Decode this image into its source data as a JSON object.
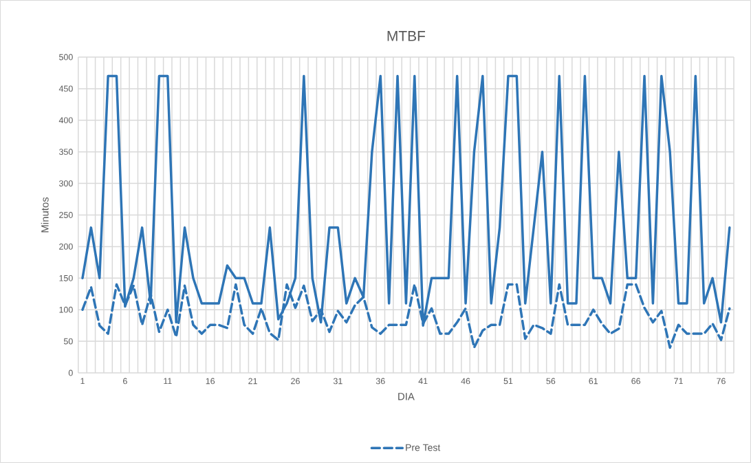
{
  "chart_data": {
    "type": "line",
    "title": "MTBF",
    "xlabel": "DIA",
    "ylabel": "Minutos",
    "x": [
      1,
      2,
      3,
      4,
      5,
      6,
      7,
      8,
      9,
      10,
      11,
      12,
      13,
      14,
      15,
      16,
      17,
      18,
      19,
      20,
      21,
      22,
      23,
      24,
      25,
      26,
      27,
      28,
      29,
      30,
      31,
      32,
      33,
      34,
      35,
      36,
      37,
      38,
      39,
      40,
      41,
      42,
      43,
      44,
      45,
      46,
      47,
      48,
      49,
      50,
      51,
      52,
      53,
      54,
      55,
      56,
      57,
      58,
      59,
      60,
      61,
      62,
      63,
      64,
      65,
      66,
      67,
      68,
      69,
      70,
      71,
      72,
      73,
      74,
      75,
      76,
      77
    ],
    "xlim": [
      0.5,
      77.5
    ],
    "xticks": [
      1,
      6,
      11,
      16,
      21,
      26,
      31,
      36,
      41,
      46,
      51,
      56,
      61,
      66,
      71,
      76
    ],
    "ylim": [
      0,
      500
    ],
    "yticks": [
      0,
      50,
      100,
      150,
      200,
      250,
      300,
      350,
      400,
      450,
      500
    ],
    "grid": true,
    "legend": "bottom",
    "series": [
      {
        "color": "#2e75b6",
        "line_style": "solid",
        "values": [
          150,
          230,
          150,
          470,
          470,
          105,
          150,
          230,
          110,
          470,
          470,
          80,
          230,
          150,
          110,
          110,
          110,
          170,
          150,
          150,
          110,
          110,
          230,
          85,
          110,
          150,
          470,
          150,
          80,
          230,
          230,
          110,
          150,
          120,
          350,
          470,
          110,
          470,
          110,
          470,
          75,
          150,
          150,
          150,
          470,
          110,
          350,
          470,
          110,
          230,
          470,
          470,
          110,
          230,
          350,
          110,
          470,
          110,
          110,
          470,
          150,
          150,
          110,
          350,
          150,
          150,
          470,
          110,
          470,
          350,
          110,
          110,
          470,
          110,
          150,
          80,
          230
        ]
      },
      {
        "name": "Pre Test",
        "color": "#2e75b6",
        "line_style": "dashed",
        "values": [
          100,
          136,
          75,
          62,
          140,
          107,
          138,
          76,
          125,
          65,
          100,
          57,
          138,
          76,
          62,
          76,
          76,
          71,
          140,
          76,
          62,
          102,
          63,
          52,
          140,
          103,
          138,
          82,
          100,
          65,
          98,
          80,
          107,
          120,
          72,
          62,
          76,
          76,
          76,
          140,
          78,
          102,
          62,
          62,
          80,
          102,
          40,
          67,
          76,
          76,
          140,
          140,
          54,
          76,
          71,
          62,
          140,
          76,
          76,
          76,
          100,
          78,
          62,
          70,
          140,
          140,
          103,
          80,
          98,
          40,
          76,
          62,
          62,
          62,
          78,
          52,
          102
        ]
      }
    ]
  }
}
